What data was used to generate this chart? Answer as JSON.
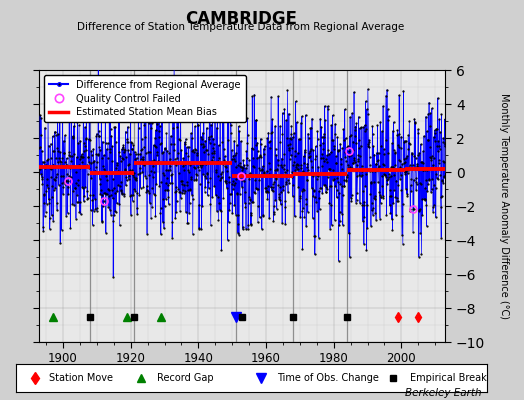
{
  "title": "CAMBRIDGE",
  "subtitle": "Difference of Station Temperature Data from Regional Average",
  "ylabel": "Monthly Temperature Anomaly Difference (°C)",
  "xlabel_years": [
    1900,
    1920,
    1940,
    1960,
    1980,
    2000
  ],
  "xlim": [
    1893,
    2013
  ],
  "ylim": [
    -10,
    6
  ],
  "yticks": [
    -10,
    -8,
    -6,
    -4,
    -2,
    0,
    2,
    4,
    6
  ],
  "fig_bg_color": "#d0d0d0",
  "plot_bg_color": "#e8e8e8",
  "seed": 42,
  "start_year": 1893,
  "end_year": 2014,
  "bias_segments": [
    {
      "x_start": 1893,
      "x_end": 1908,
      "bias": 0.3
    },
    {
      "x_start": 1908,
      "x_end": 1921,
      "bias": -0.05
    },
    {
      "x_start": 1921,
      "x_end": 1950,
      "bias": 0.55
    },
    {
      "x_start": 1950,
      "x_end": 1968,
      "bias": -0.25
    },
    {
      "x_start": 1968,
      "x_end": 1984,
      "bias": -0.1
    },
    {
      "x_start": 1984,
      "x_end": 2001,
      "bias": 0.1
    },
    {
      "x_start": 2001,
      "x_end": 2014,
      "bias": 0.15
    }
  ],
  "station_moves": [
    1999,
    2005
  ],
  "record_gaps": [
    1897,
    1919,
    1929
  ],
  "obs_changes": [
    1951
  ],
  "emp_breaks": [
    1908,
    1921,
    1953,
    1968,
    1984
  ],
  "qc_fails_x": [
    1901.5,
    1912.0,
    1924.5,
    1952.5,
    1984.5,
    2003.5
  ],
  "vert_lines": [
    1908,
    1921,
    1951,
    1968,
    1984
  ],
  "berkeley_earth_text": "Berkeley Earth"
}
